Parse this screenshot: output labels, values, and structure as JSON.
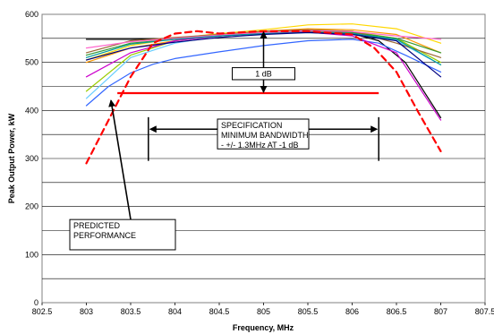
{
  "chart_data": {
    "type": "line",
    "title": "",
    "xlabel": "Frequency, MHz",
    "ylabel": "Peak Output Power, kW",
    "xlim": [
      802.5,
      807.5
    ],
    "ylim": [
      0,
      600
    ],
    "x_ticks": [
      "802.5",
      "803",
      "803.5",
      "804",
      "804.5",
      "805",
      "805.5",
      "806",
      "806.5",
      "807",
      "807.5"
    ],
    "y_ticks": [
      "0",
      "100",
      "200",
      "300",
      "400",
      "500",
      "600"
    ],
    "grid": "horizontal",
    "legend": "none",
    "series": [
      {
        "color": "#000000",
        "style": "solid",
        "x": [
          803,
          803.5,
          804,
          804.5,
          805,
          805.5,
          806,
          806.3,
          806.6,
          807
        ],
        "y": [
          548,
          548,
          550,
          555,
          560,
          563,
          560,
          545,
          500,
          385
        ]
      },
      {
        "color": "#3366ff",
        "style": "solid",
        "x": [
          803,
          803.25,
          803.5,
          803.75,
          804,
          804.5,
          805,
          805.5,
          806,
          806.3,
          806.6,
          807
        ],
        "y": [
          410,
          450,
          478,
          496,
          508,
          522,
          535,
          545,
          548,
          540,
          515,
          480
        ]
      },
      {
        "color": "#66ccff",
        "style": "solid",
        "x": [
          803,
          803.5,
          804,
          804.5,
          805,
          805.5,
          806,
          806.5,
          807
        ],
        "y": [
          425,
          510,
          540,
          555,
          562,
          565,
          562,
          545,
          495
        ]
      },
      {
        "color": "#99cc00",
        "style": "solid",
        "x": [
          803,
          803.5,
          804,
          804.5,
          805,
          805.5,
          806,
          806.5,
          807
        ],
        "y": [
          440,
          515,
          545,
          558,
          563,
          567,
          564,
          550,
          500
        ]
      },
      {
        "color": "#ffd700",
        "style": "solid",
        "x": [
          803,
          803.5,
          804,
          804.5,
          805,
          805.5,
          806,
          806.5,
          807
        ],
        "y": [
          505,
          535,
          550,
          560,
          568,
          578,
          580,
          570,
          540
        ]
      },
      {
        "color": "#ff9900",
        "style": "solid",
        "x": [
          803,
          803.5,
          804,
          804.5,
          805,
          805.5,
          806,
          806.5,
          807
        ],
        "y": [
          500,
          530,
          545,
          555,
          565,
          570,
          568,
          558,
          520
        ]
      },
      {
        "color": "#339933",
        "style": "solid",
        "x": [
          803,
          803.5,
          804,
          804.5,
          805,
          805.5,
          806,
          806.5,
          807
        ],
        "y": [
          515,
          540,
          548,
          556,
          562,
          565,
          562,
          550,
          520
        ]
      },
      {
        "color": "#996633",
        "style": "solid",
        "x": [
          803,
          803.5,
          804,
          804.5,
          805,
          805.5,
          806,
          806.5,
          807
        ],
        "y": [
          520,
          545,
          552,
          558,
          565,
          568,
          565,
          540,
          510
        ]
      },
      {
        "color": "#cc00cc",
        "style": "solid",
        "x": [
          803,
          803.5,
          804,
          804.5,
          805,
          805.5,
          806,
          806.5,
          807
        ],
        "y": [
          470,
          520,
          545,
          555,
          560,
          563,
          555,
          520,
          380
        ]
      },
      {
        "color": "#ff66cc",
        "style": "solid",
        "x": [
          803,
          803.5,
          804,
          804.5,
          805,
          805.5,
          806,
          806.5,
          807
        ],
        "y": [
          530,
          543,
          550,
          557,
          562,
          566,
          564,
          555,
          548
        ]
      },
      {
        "color": "#009999",
        "style": "solid",
        "x": [
          803,
          803.5,
          804,
          804.5,
          805,
          805.5,
          806,
          806.5,
          807
        ],
        "y": [
          510,
          538,
          548,
          555,
          560,
          562,
          560,
          548,
          495
        ]
      },
      {
        "color": "#000080",
        "style": "solid",
        "x": [
          803,
          803.5,
          804,
          804.5,
          805,
          805.5,
          806,
          806.5,
          807
        ],
        "y": [
          505,
          530,
          542,
          552,
          558,
          562,
          558,
          545,
          470
        ]
      },
      {
        "color": "#ff0000",
        "style": "dashed",
        "name": "PREDICTED PERFORMANCE",
        "x": [
          803,
          803.25,
          803.5,
          803.75,
          804,
          804.25,
          804.5,
          805,
          805.5,
          806,
          806.25,
          806.5,
          806.75,
          807
        ],
        "y": [
          290,
          380,
          470,
          540,
          560,
          565,
          560,
          565,
          565,
          558,
          530,
          480,
          395,
          315
        ]
      }
    ],
    "annotations": {
      "spec_text": [
        "SPECIFICATION",
        "MINIMUM BANDWIDTH",
        "- +/- 1.3MHz AT -1 dB"
      ],
      "db_text": "1 dB",
      "predicted_text": [
        "PREDICTED",
        "PERFORMANCE"
      ],
      "spec_level_kw": 436,
      "spec_x_range": [
        803.7,
        806.3
      ],
      "db_bracket_kw": [
        565,
        436
      ]
    }
  }
}
